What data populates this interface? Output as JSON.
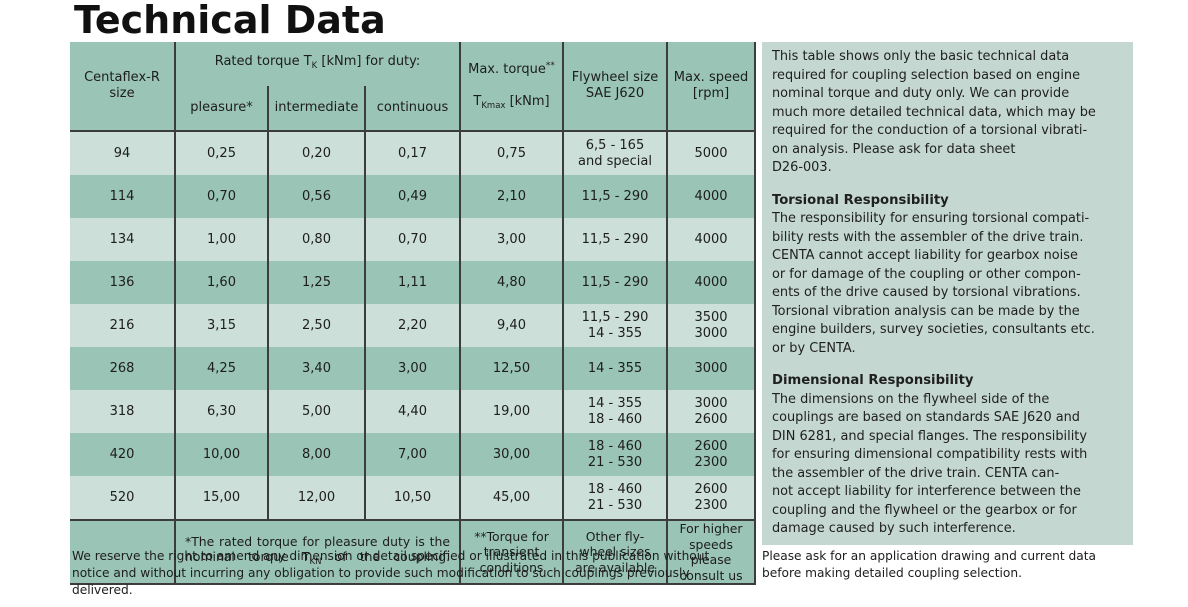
{
  "title": "Technical Data",
  "colors": {
    "row_dark": "#9ac4b6",
    "row_light": "#ccdfd8",
    "panel_bg": "#c4d7d0",
    "border": "#3c3c3c",
    "text": "#1d1d1d"
  },
  "table": {
    "header": {
      "size": "Centaflex-R\nsize",
      "rated_pre": "Rated torque T",
      "rated_sub": "K",
      "rated_post": " [kNm] for duty:",
      "duty": [
        "pleasure*",
        "intermediate",
        "continuous"
      ],
      "max_torque_line1": "Max. torque",
      "max_torque_sup": "**",
      "max_torque_pre": "T",
      "max_torque_sub": "Kmax",
      "max_torque_post": " [kNm]",
      "flywheel": "Flywheel size\nSAE J620",
      "speed": "Max. speed\n[rpm]"
    },
    "rows": [
      {
        "size": "94",
        "pleasure": "0,25",
        "intermediate": "0,20",
        "continuous": "0,17",
        "max_torque": "0,75",
        "flywheel": "6,5 - 165\nand special",
        "speed": "5000"
      },
      {
        "size": "114",
        "pleasure": "0,70",
        "intermediate": "0,56",
        "continuous": "0,49",
        "max_torque": "2,10",
        "flywheel": "11,5 - 290",
        "speed": "4000"
      },
      {
        "size": "134",
        "pleasure": "1,00",
        "intermediate": "0,80",
        "continuous": "0,70",
        "max_torque": "3,00",
        "flywheel": "11,5 - 290",
        "speed": "4000"
      },
      {
        "size": "136",
        "pleasure": "1,60",
        "intermediate": "1,25",
        "continuous": "1,11",
        "max_torque": "4,80",
        "flywheel": "11,5 - 290",
        "speed": "4000"
      },
      {
        "size": "216",
        "pleasure": "3,15",
        "intermediate": "2,50",
        "continuous": "2,20",
        "max_torque": "9,40",
        "flywheel": "11,5 - 290\n14 - 355",
        "speed": "3500\n3000"
      },
      {
        "size": "268",
        "pleasure": "4,25",
        "intermediate": "3,40",
        "continuous": "3,00",
        "max_torque": "12,50",
        "flywheel": "14 - 355",
        "speed": "3000"
      },
      {
        "size": "318",
        "pleasure": "6,30",
        "intermediate": "5,00",
        "continuous": "4,40",
        "max_torque": "19,00",
        "flywheel": "14 - 355\n18 - 460",
        "speed": "3000\n2600"
      },
      {
        "size": "420",
        "pleasure": "10,00",
        "intermediate": "8,00",
        "continuous": "7,00",
        "max_torque": "30,00",
        "flywheel": "18 - 460\n21 - 530",
        "speed": "2600\n2300"
      },
      {
        "size": "520",
        "pleasure": "15,00",
        "intermediate": "12,00",
        "continuous": "10,50",
        "max_torque": "45,00",
        "flywheel": "18 - 460\n21 - 530",
        "speed": "2600\n2300"
      }
    ],
    "footer": {
      "rated_note_pre": "*The rated torque for pleasure duty is the nominal torque T",
      "rated_note_sub": "KN",
      "rated_note_post": " of the coupling.",
      "transient_note": "**Torque for\ntransient\nconditions",
      "flywheel_note": "Other fly-\nwheel sizes\nare available",
      "speed_note": "For higher\nspeeds please\nconsult us"
    }
  },
  "panel": {
    "intro": "This table shows only the basic technical data\nrequired for coupling selection based on engine\nnominal torque and duty only. We can provide\nmuch more detailed technical data, which may be\nrequired for the conduction of a torsional vibrati-\non analysis. Please ask for data sheet\nD26-003.",
    "sections": [
      {
        "heading": "Torsional Responsibility",
        "body": "The responsibility for ensuring torsional compati-\nbility rests with the assembler of the drive train.\nCENTA cannot accept liability for gearbox noise\nor for damage of the coupling or other compon-\nents of the drive caused by torsional vibrations.\nTorsional vibration analysis can be made by the\nengine builders, survey societies, consultants etc.\nor by CENTA."
      },
      {
        "heading": "Dimensional Responsibility",
        "body": "The dimensions on the flywheel side of the\ncouplings are based on standards SAE J620 and\nDIN 6281, and special flanges. The responsibility\nfor ensuring dimensional compatibility rests with\nthe assembler of the drive train. CENTA can-\nnot accept liability for interference between the\ncoupling and the flywheel or the gearbox or for\ndamage caused by such interference."
      }
    ]
  },
  "footnotes": {
    "left": "We reserve the right to amend any dimension or detail specified or illustrated in this publication without\nnotice and without incurring any obligation to provide such modification to such couplings previously\ndelivered.",
    "right": "Please ask for an application drawing and current data\nbefore making detailed coupling selection."
  }
}
